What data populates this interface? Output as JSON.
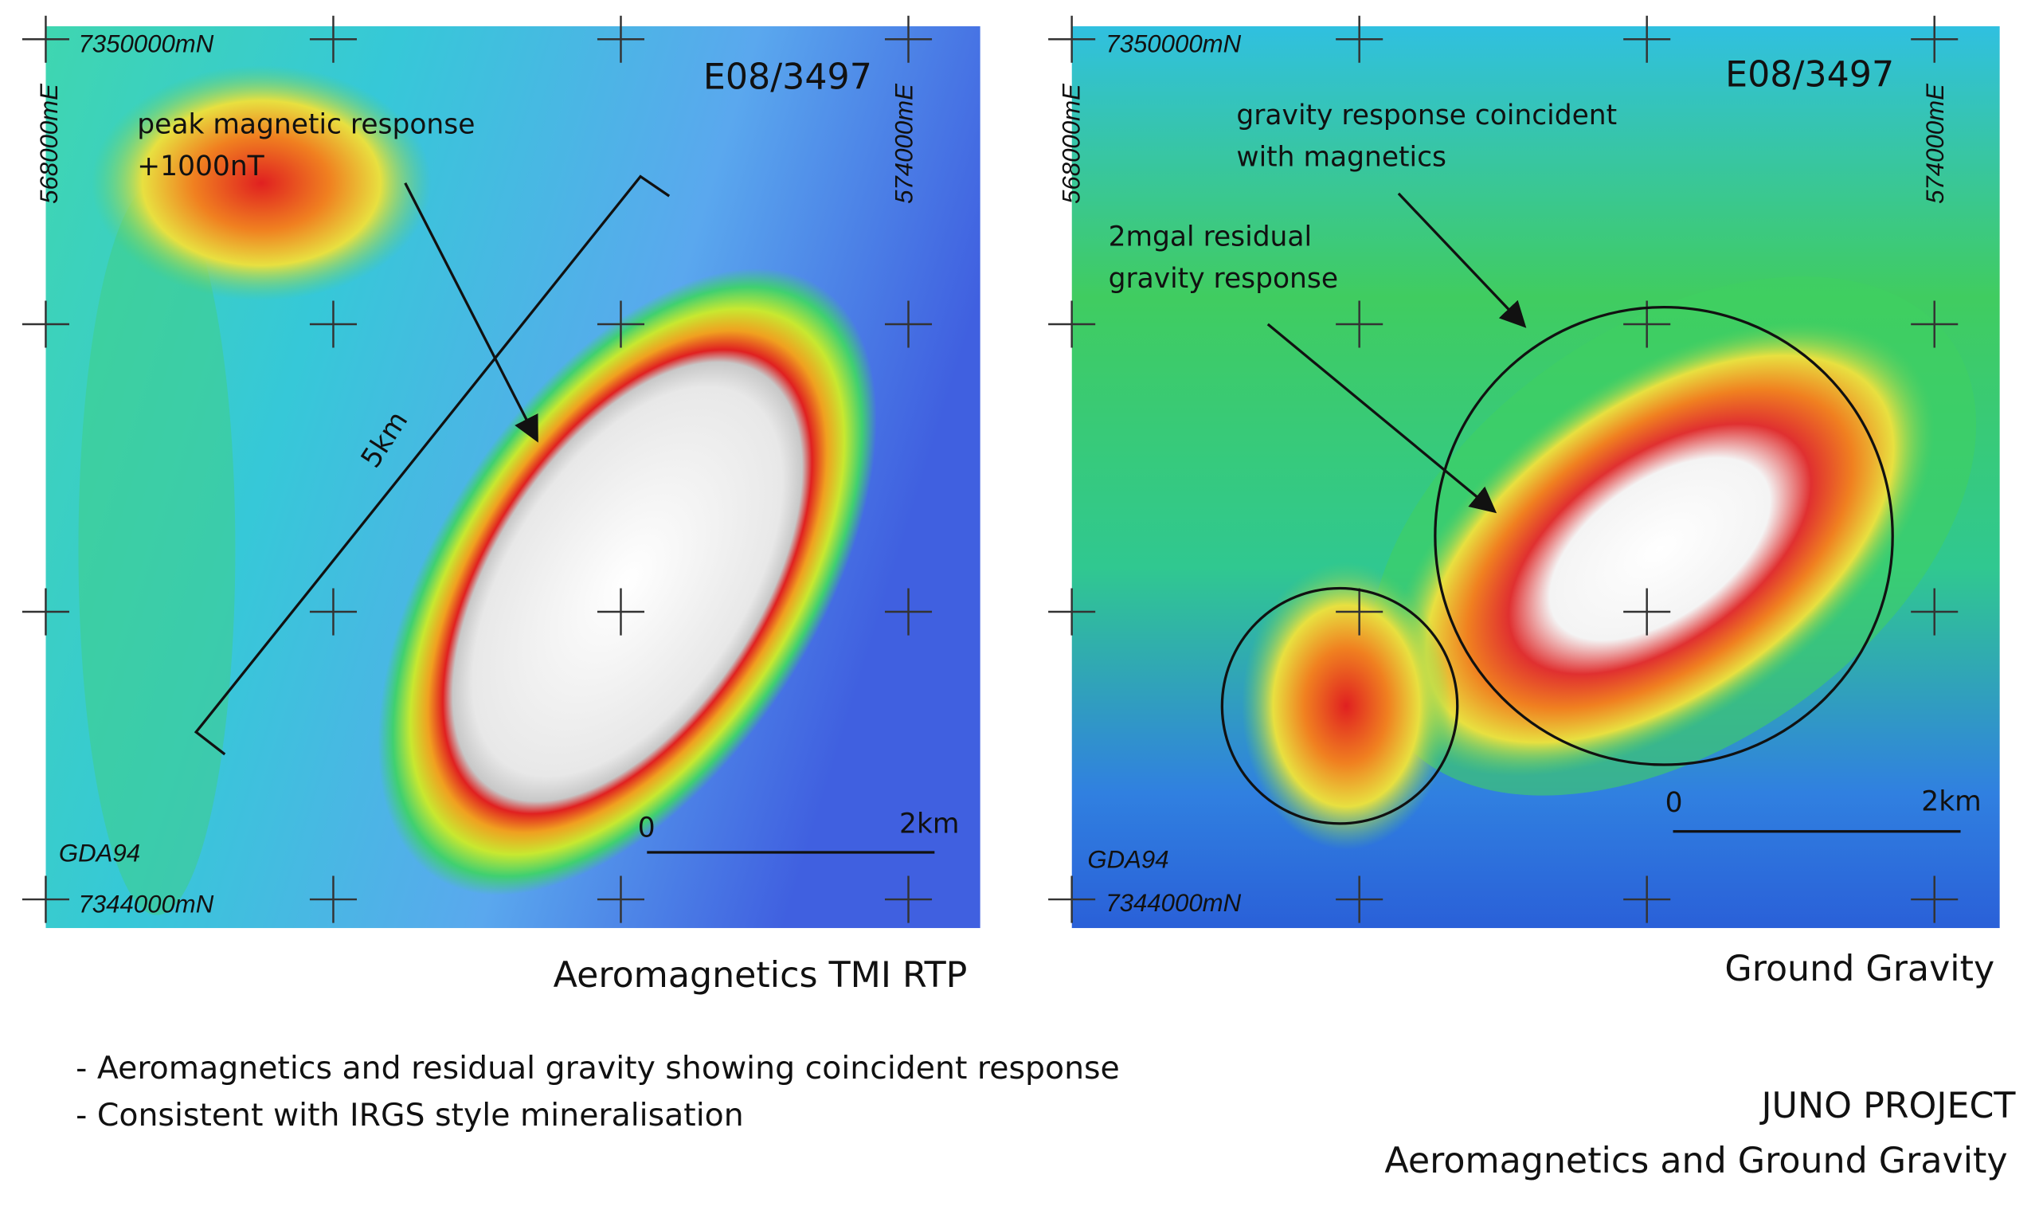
{
  "panels": [
    {
      "title": "E08/3497",
      "north_top": "7350000mN",
      "north_bottom": "7344000mN",
      "east_left": "568000mE",
      "east_right": "574000mE",
      "datum": "GDA94",
      "scale_start": "0",
      "scale_end": "2km",
      "annotations": [
        "peak magnetic response",
        "+1000nT",
        "5km"
      ],
      "caption": "Aeromagnetics TMI RTP"
    },
    {
      "title": "E08/3497",
      "north_top": "7350000mN",
      "north_bottom": "7344000mN",
      "east_left": "568000mE",
      "east_right": "574000mE",
      "datum": "GDA94",
      "scale_start": "0",
      "scale_end": "2km",
      "annotations": [
        "gravity response coincident",
        "with magnetics",
        "2mgal residual",
        "gravity response"
      ],
      "caption": "Ground Gravity"
    }
  ],
  "bullets": [
    "- Aeromagnetics and residual gravity showing coincident response",
    "- Consistent with IRGS style mineralisation"
  ],
  "footer": {
    "project": "JUNO PROJECT",
    "subtitle": "Aeromagnetics and Ground Gravity"
  }
}
